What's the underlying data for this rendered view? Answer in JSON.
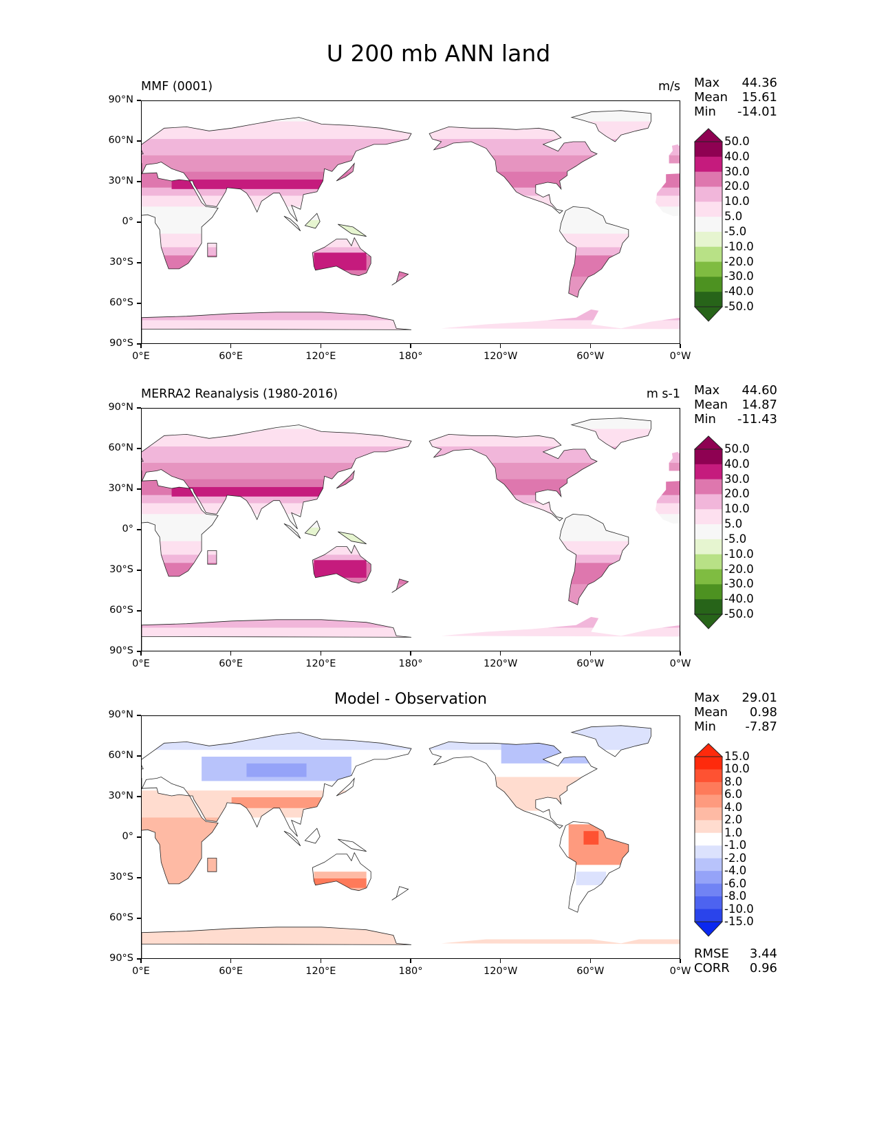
{
  "figure_title": "U 200 mb ANN land",
  "panels": [
    {
      "left_title": "MMF (0001)",
      "center_title": "",
      "units": "m/s",
      "stats": {
        "max_label": "Max",
        "max": "44.36",
        "mean_label": "Mean",
        "mean": "15.61",
        "min_label": "Min",
        "min": "-14.01"
      },
      "colorbar": {
        "levels": [
          "50.0",
          "40.0",
          "30.0",
          "20.0",
          "10.0",
          "5.0",
          "-5.0",
          "-10.0",
          "-20.0",
          "-30.0",
          "-40.0",
          "-50.0"
        ],
        "colors": [
          "#8e0152",
          "#c51b7d",
          "#de77ae",
          "#f1b6da",
          "#fde0ef",
          "#f7f7f7",
          "#e6f5d0",
          "#b8e186",
          "#7fbc41",
          "#4d9221",
          "#276419"
        ],
        "top_color": "#8e0152",
        "bottom_color": "#276419"
      }
    },
    {
      "left_title": "MERRA2 Reanalysis (1980-2016)",
      "center_title": "",
      "units": "m s-1",
      "stats": {
        "max_label": "Max",
        "max": "44.60",
        "mean_label": "Mean",
        "mean": "14.87",
        "min_label": "Min",
        "min": "-11.43"
      },
      "colorbar": {
        "levels": [
          "50.0",
          "40.0",
          "30.0",
          "20.0",
          "10.0",
          "5.0",
          "-5.0",
          "-10.0",
          "-20.0",
          "-30.0",
          "-40.0",
          "-50.0"
        ],
        "colors": [
          "#8e0152",
          "#c51b7d",
          "#de77ae",
          "#f1b6da",
          "#fde0ef",
          "#f7f7f7",
          "#e6f5d0",
          "#b8e186",
          "#7fbc41",
          "#4d9221",
          "#276419"
        ],
        "top_color": "#8e0152",
        "bottom_color": "#276419"
      }
    },
    {
      "left_title": "",
      "center_title": "Model - Observation",
      "units": "",
      "stats": {
        "max_label": "Max",
        "max": "29.01",
        "mean_label": "Mean",
        "mean": "0.98",
        "min_label": "Min",
        "min": "-7.87"
      },
      "colorbar": {
        "levels": [
          "15.0",
          "10.0",
          "8.0",
          "6.0",
          "4.0",
          "2.0",
          "1.0",
          "-1.0",
          "-2.0",
          "-4.0",
          "-6.0",
          "-8.0",
          "-10.0",
          "-15.0"
        ],
        "colors": [
          "#fe2a0c",
          "#fe5232",
          "#fe7a5a",
          "#fe9a7e",
          "#febaa4",
          "#ffdccf",
          "#ffffff",
          "#dce2fd",
          "#b8c3fb",
          "#95a3f8",
          "#7183f4",
          "#4d63f0",
          "#2a44eb"
        ],
        "top_color": "#fe2a0c",
        "bottom_color": "#0a28f0"
      },
      "metrics": {
        "rmse_label": "RMSE",
        "rmse": "3.44",
        "corr_label": "CORR",
        "corr": "0.96"
      }
    }
  ],
  "axis": {
    "y_ticks": [
      "90°N",
      "60°N",
      "30°N",
      "0°",
      "30°S",
      "60°S",
      "90°S"
    ],
    "x_ticks": [
      "0°E",
      "60°E",
      "120°E",
      "180°",
      "120°W",
      "60°W",
      "0°W"
    ]
  },
  "map_palettes": {
    "panel1": {
      "c50": "#c51b7d",
      "c40": "#c51b7d",
      "c30": "#de77ae",
      "c20": "#e694c0",
      "c10": "#f1b6da",
      "c5": "#fde0ef",
      "c0": "#f7f7f7",
      "n5": "#e6f5d0",
      "n10": "#b8e186"
    },
    "diff": {
      "r15": "#fe2a0c",
      "r10": "#fe5232",
      "r8": "#fe7a5a",
      "r6": "#fe9a7e",
      "r4": "#febaa4",
      "r2": "#ffdccf",
      "w": "#ffffff",
      "b2": "#dce2fd",
      "b4": "#b8c3fb",
      "b6": "#95a3f8",
      "b8": "#7183f4"
    }
  }
}
